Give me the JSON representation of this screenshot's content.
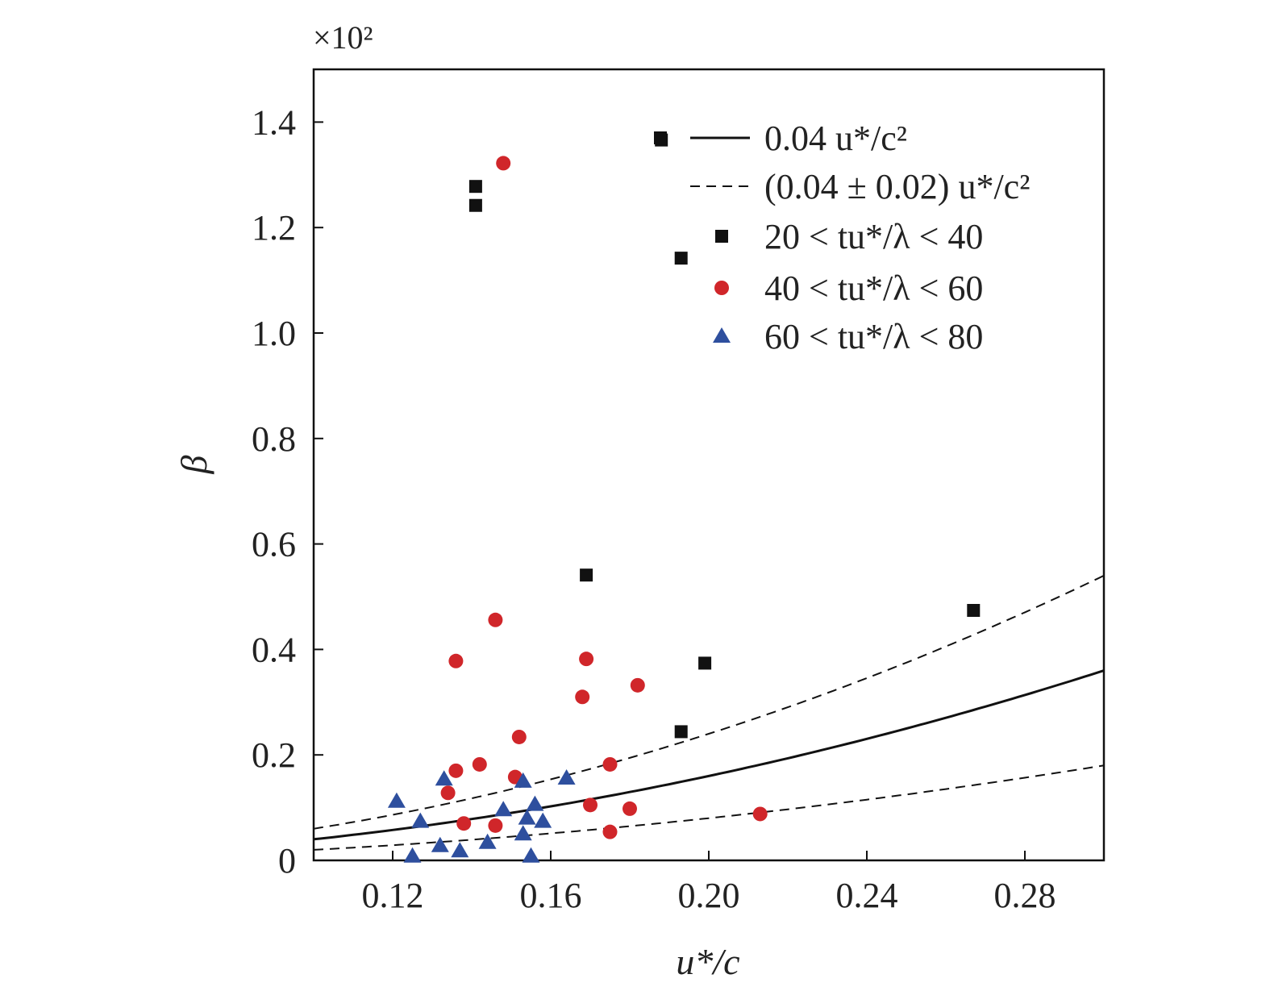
{
  "chart_data": {
    "type": "scatter",
    "title": "",
    "xlabel": "u*/c",
    "ylabel": "β",
    "y_scale_note": "×10²",
    "xlim": [
      0.1,
      0.3
    ],
    "ylim": [
      0,
      1.5
    ],
    "x_ticks": [
      0.12,
      0.16,
      0.2,
      0.24,
      0.28
    ],
    "x_tick_labels": [
      "0.12",
      "0.16",
      "0.20",
      "0.24",
      "0.28"
    ],
    "y_ticks": [
      0,
      0.2,
      0.4,
      0.6,
      0.8,
      1.0,
      1.2,
      1.4
    ],
    "y_tick_labels": [
      "0",
      "0.2",
      "0.4",
      "0.6",
      "0.8",
      "1.0",
      "1.2",
      "1.4"
    ],
    "grid": false,
    "legend_position": "top-right",
    "lines": [
      {
        "name": "0.04 u*/c²",
        "style": "solid",
        "coefficient": 0.04,
        "x_range": [
          0.1,
          0.3
        ],
        "color": "#111111"
      },
      {
        "name": "(0.04 ± 0.02) u*/c²",
        "style": "dashed",
        "coefficient": 0.06,
        "x_range": [
          0.1,
          0.3
        ],
        "color": "#111111"
      },
      {
        "name": "",
        "style": "dashed",
        "coefficient": 0.02,
        "x_range": [
          0.1,
          0.3
        ],
        "color": "#111111"
      }
    ],
    "series": [
      {
        "name": "20 < tu*/λ < 40",
        "marker": "square",
        "color": "#111111",
        "points": [
          [
            0.141,
            1.278
          ],
          [
            0.141,
            1.242
          ],
          [
            0.188,
            1.366
          ],
          [
            0.193,
            1.142
          ],
          [
            0.169,
            0.541
          ],
          [
            0.199,
            0.374
          ],
          [
            0.193,
            0.244
          ],
          [
            0.267,
            0.474
          ]
        ]
      },
      {
        "name": "40 < tu*/λ < 60",
        "marker": "circle",
        "color": "#d0262a",
        "points": [
          [
            0.148,
            1.322
          ],
          [
            0.146,
            0.456
          ],
          [
            0.136,
            0.378
          ],
          [
            0.169,
            0.382
          ],
          [
            0.168,
            0.31
          ],
          [
            0.182,
            0.332
          ],
          [
            0.152,
            0.234
          ],
          [
            0.142,
            0.182
          ],
          [
            0.136,
            0.17
          ],
          [
            0.151,
            0.158
          ],
          [
            0.175,
            0.182
          ],
          [
            0.134,
            0.128
          ],
          [
            0.17,
            0.105
          ],
          [
            0.18,
            0.098
          ],
          [
            0.138,
            0.07
          ],
          [
            0.146,
            0.066
          ],
          [
            0.175,
            0.054
          ],
          [
            0.213,
            0.088
          ]
        ]
      },
      {
        "name": "60 < tu*/λ < 80",
        "marker": "triangle",
        "color": "#2e4f9e",
        "points": [
          [
            0.121,
            0.112
          ],
          [
            0.127,
            0.074
          ],
          [
            0.133,
            0.154
          ],
          [
            0.153,
            0.15
          ],
          [
            0.164,
            0.156
          ],
          [
            0.148,
            0.096
          ],
          [
            0.156,
            0.106
          ],
          [
            0.154,
            0.08
          ],
          [
            0.158,
            0.074
          ],
          [
            0.153,
            0.05
          ],
          [
            0.144,
            0.034
          ],
          [
            0.132,
            0.028
          ],
          [
            0.137,
            0.018
          ],
          [
            0.125,
            0.008
          ],
          [
            0.155,
            0.008
          ]
        ]
      }
    ],
    "legend_entries": [
      {
        "label": "0.04 u*/c²",
        "kind": "solid-line"
      },
      {
        "label": "(0.04 ± 0.02) u*/c²",
        "kind": "dashed-line"
      },
      {
        "label": "20 < tu*/λ < 40",
        "kind": "square"
      },
      {
        "label": "40 < tu*/λ < 60",
        "kind": "circle"
      },
      {
        "label": "60 < tu*/λ < 80",
        "kind": "triangle"
      }
    ]
  }
}
